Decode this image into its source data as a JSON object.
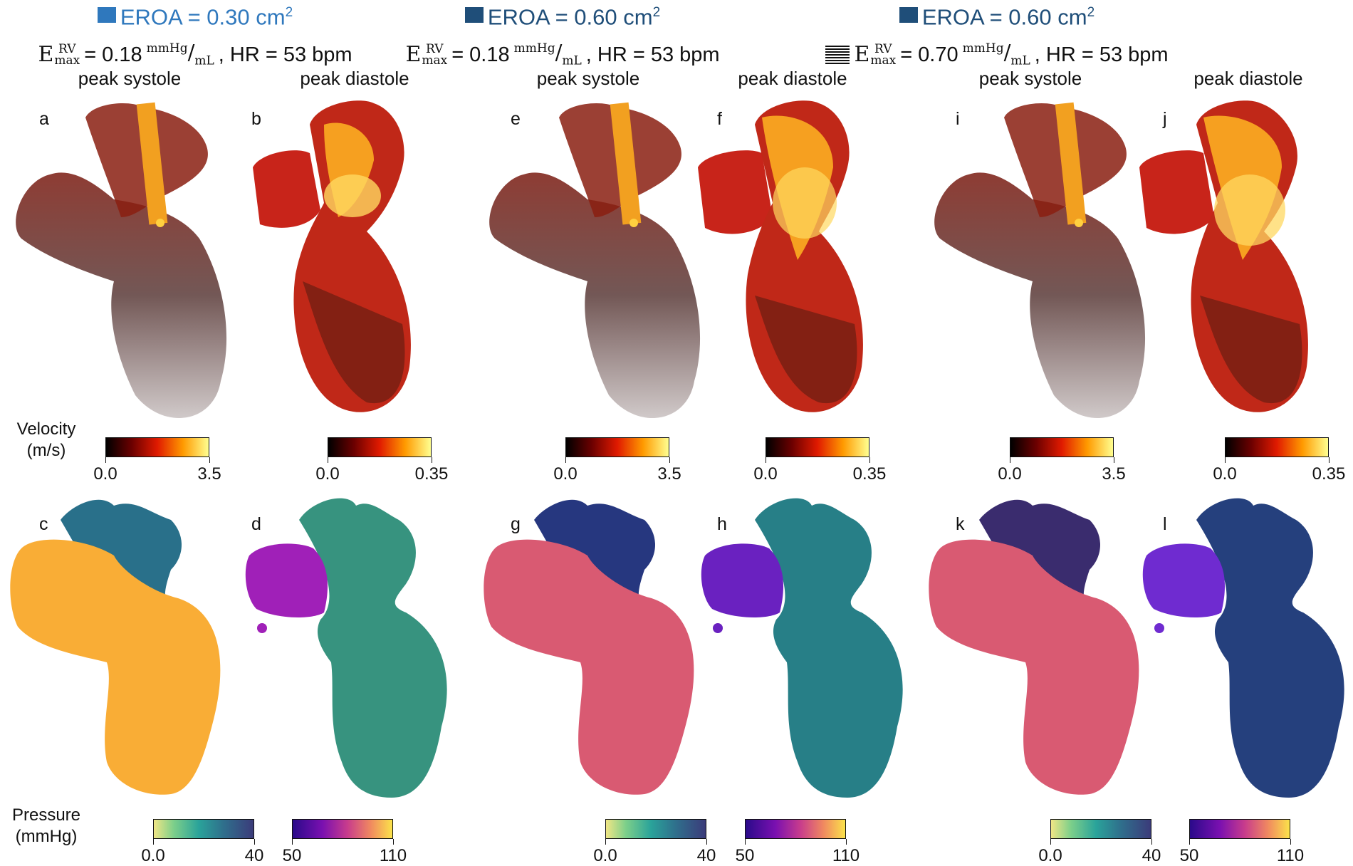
{
  "groups": [
    {
      "eroa_label": "EROA = 0.30 cm",
      "eroa_exp": "2",
      "eroa_color": "#2f78bd",
      "emax_value": " = 0.18 ",
      "unit_top": "mmHg",
      "unit_bottom": "mL",
      "hr": ", HR = 53 bpm",
      "swatch": "solid-light"
    },
    {
      "eroa_label": "EROA = 0.60 cm",
      "eroa_exp": "2",
      "eroa_color": "#1f4e79",
      "emax_value": " = 0.18 ",
      "unit_top": "mmHg",
      "unit_bottom": "mL",
      "hr": ", HR = 53 bpm",
      "swatch": "solid-dark"
    },
    {
      "eroa_label": "EROA = 0.60 cm",
      "eroa_exp": "2",
      "eroa_color": "#1f4e79",
      "emax_value": " = 0.70 ",
      "unit_top": "mmHg",
      "unit_bottom": "mL",
      "hr": ", HR = 53 bpm",
      "swatch": "solid-dark",
      "hatched_marker": true
    }
  ],
  "emax_symbol": {
    "base": "E",
    "sup": "RV",
    "sub": "max"
  },
  "phases": [
    "peak systole",
    "peak diastole",
    "peak systole",
    "peak diastole",
    "peak systole",
    "peak diastole"
  ],
  "velocity_letters": [
    "a",
    "b",
    "e",
    "f",
    "i",
    "j"
  ],
  "pressure_letters": [
    "c",
    "d",
    "g",
    "h",
    "k",
    "l"
  ],
  "velocity_label": {
    "line1": "Velocity",
    "line2": "(m/s)"
  },
  "pressure_label": {
    "line1": "Pressure",
    "line2": "(mmHg)"
  },
  "velocity_colorbars": [
    {
      "min": "0.0",
      "max": "3.5"
    },
    {
      "min": "0.0",
      "max": "0.35"
    },
    {
      "min": "0.0",
      "max": "3.5"
    },
    {
      "min": "0.0",
      "max": "0.35"
    },
    {
      "min": "0.0",
      "max": "3.5"
    },
    {
      "min": "0.0",
      "max": "0.35"
    }
  ],
  "pressure_colorbars": [
    {
      "min": "0.0",
      "max": "40",
      "map": "viridis-like"
    },
    {
      "min": "50",
      "max": "110",
      "map": "plasma-like"
    },
    {
      "min": "0.0",
      "max": "40",
      "map": "viridis-like"
    },
    {
      "min": "50",
      "max": "110",
      "map": "plasma-like"
    },
    {
      "min": "0.0",
      "max": "40",
      "map": "viridis-like"
    },
    {
      "min": "50",
      "max": "110",
      "map": "plasma-like"
    }
  ],
  "colors": {
    "pressure_fill": [
      "#f9ad36",
      "#37937f",
      "#d95a72",
      "#277f87",
      "#d95a72",
      "#25407d"
    ],
    "pressure_upper": [
      "#29708a",
      "#37937f",
      "#26377f",
      "#277f87",
      "#3a2c6e",
      "#25407d"
    ],
    "pressure_ra": [
      "#f9ad36",
      "#a020b8",
      "#d95a72",
      "#6a21c0",
      "#d95a72",
      "#6f2bd0"
    ]
  }
}
